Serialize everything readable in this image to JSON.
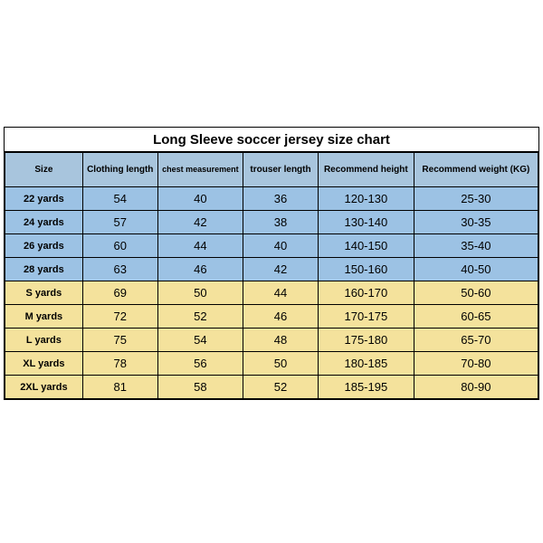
{
  "title": "Long Sleeve soccer jersey size chart",
  "columns": [
    {
      "key": "size",
      "label": "Size",
      "cls": "col-size"
    },
    {
      "key": "clothing",
      "label": "Clothing length",
      "cls": "col-cloth"
    },
    {
      "key": "chest",
      "label": "chest measurement",
      "cls": "col-chest small-hdr"
    },
    {
      "key": "trouser",
      "label": "trouser length",
      "cls": "col-trous"
    },
    {
      "key": "height",
      "label": "Recommend height",
      "cls": "col-h"
    },
    {
      "key": "weight",
      "label": "Recommend weight (KG)",
      "cls": "col-w"
    }
  ],
  "rows": [
    {
      "group": "blue",
      "size": "22 yards",
      "clothing": "54",
      "chest": "40",
      "trouser": "36",
      "height": "120-130",
      "weight": "25-30"
    },
    {
      "group": "blue",
      "size": "24 yards",
      "clothing": "57",
      "chest": "42",
      "trouser": "38",
      "height": "130-140",
      "weight": "30-35"
    },
    {
      "group": "blue",
      "size": "26 yards",
      "clothing": "60",
      "chest": "44",
      "trouser": "40",
      "height": "140-150",
      "weight": "35-40"
    },
    {
      "group": "blue",
      "size": "28 yards",
      "clothing": "63",
      "chest": "46",
      "trouser": "42",
      "height": "150-160",
      "weight": "40-50"
    },
    {
      "group": "yellow",
      "size": "S yards",
      "clothing": "69",
      "chest": "50",
      "trouser": "44",
      "height": "160-170",
      "weight": "50-60"
    },
    {
      "group": "yellow",
      "size": "M yards",
      "clothing": "72",
      "chest": "52",
      "trouser": "46",
      "height": "170-175",
      "weight": "60-65"
    },
    {
      "group": "yellow",
      "size": "L yards",
      "clothing": "75",
      "chest": "54",
      "trouser": "48",
      "height": "175-180",
      "weight": "65-70"
    },
    {
      "group": "yellow",
      "size": "XL yards",
      "clothing": "78",
      "chest": "56",
      "trouser": "50",
      "height": "180-185",
      "weight": "70-80"
    },
    {
      "group": "yellow",
      "size": "2XL yards",
      "clothing": "81",
      "chest": "58",
      "trouser": "52",
      "height": "185-195",
      "weight": "80-90"
    }
  ],
  "colors": {
    "header_bg": "#a8c5dd",
    "blue_bg": "#9cc2e4",
    "yellow_bg": "#f4e29c",
    "border": "#000000",
    "background": "#ffffff"
  }
}
